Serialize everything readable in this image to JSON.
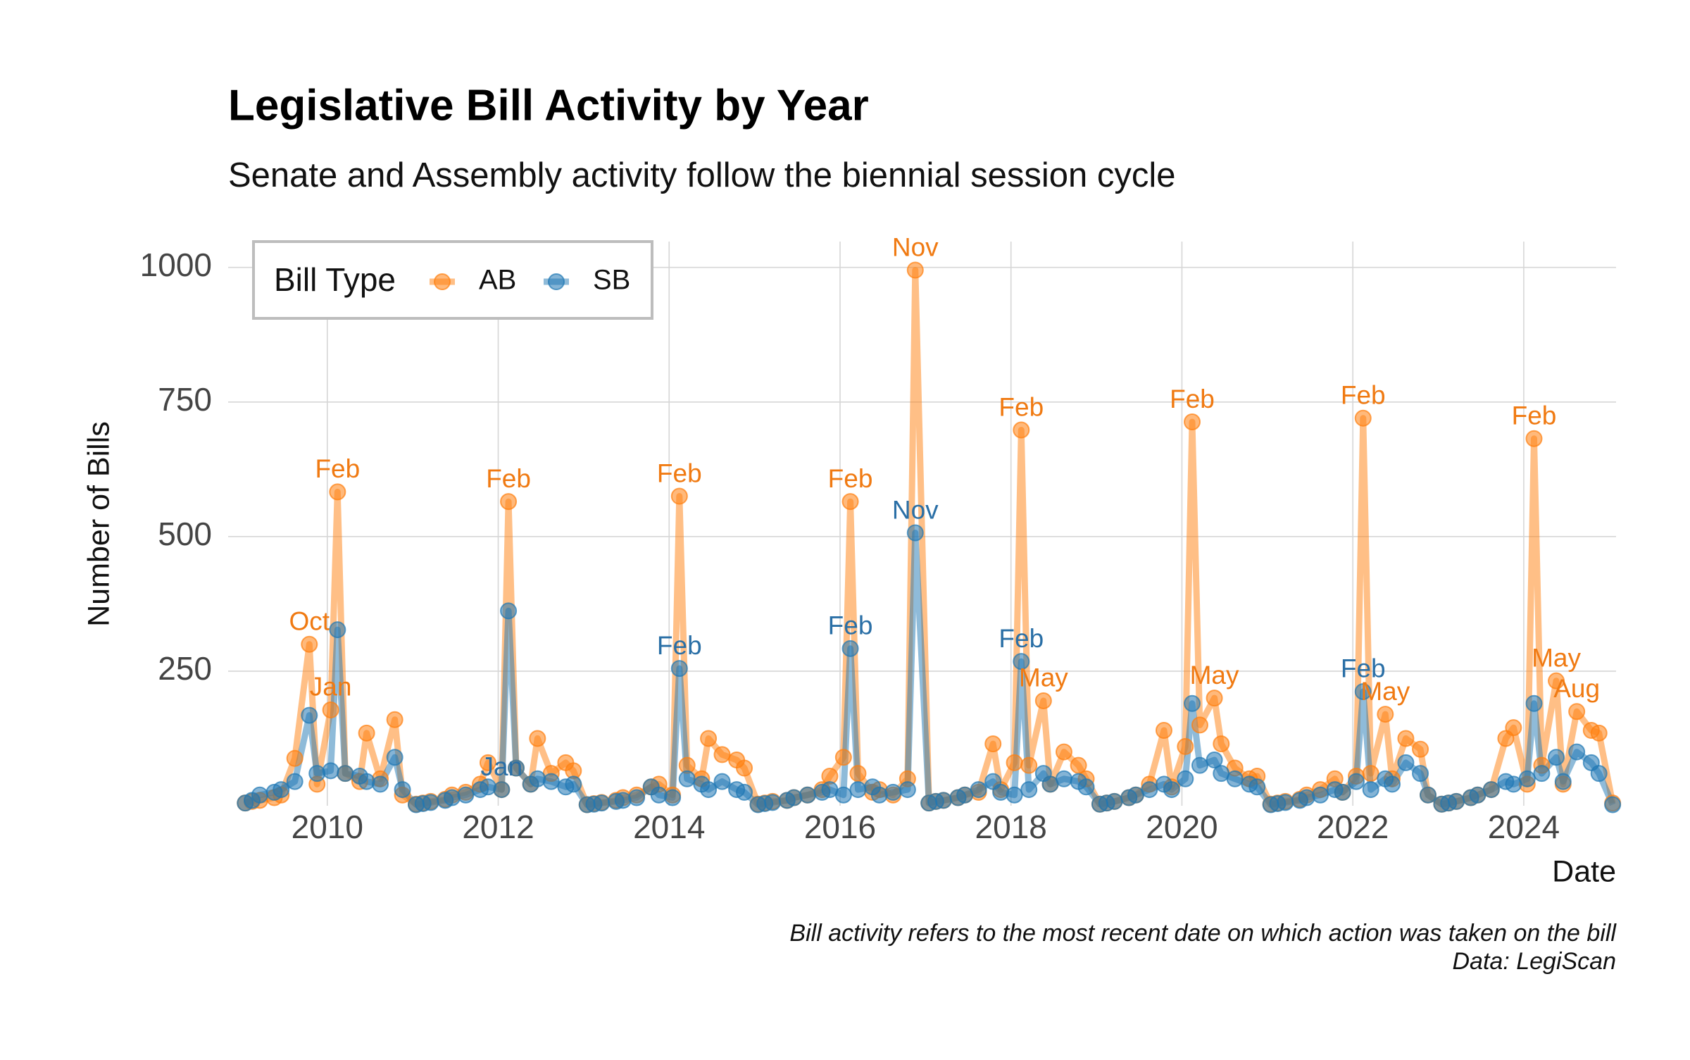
{
  "chart_data": {
    "type": "line",
    "title": "Legislative Bill Activity by Year",
    "subtitle": "Senate and Assembly activity follow the biennial session cycle",
    "x_label": "Date",
    "y_label": "Number of Bills",
    "caption": [
      "Bill activity refers to the most recent date on which action was taken on the bill",
      "Data: LegiScan"
    ],
    "legend_title": "Bill Type",
    "legend_position": "top-left",
    "grid": true,
    "xlim": [
      2008.84,
      2025.08
    ],
    "xticks": [
      2010,
      2012,
      2014,
      2016,
      2018,
      2020,
      2022,
      2024
    ],
    "ylim": [
      0,
      1048
    ],
    "yticks": [
      250,
      500,
      750,
      1000
    ],
    "x": [
      2009.04,
      2009.12,
      2009.21,
      2009.38,
      2009.46,
      2009.62,
      2009.79,
      2009.88,
      2010.04,
      2010.12,
      2010.21,
      2010.38,
      2010.46,
      2010.62,
      2010.79,
      2010.88,
      2011.04,
      2011.12,
      2011.21,
      2011.38,
      2011.46,
      2011.62,
      2011.79,
      2011.88,
      2012.04,
      2012.12,
      2012.21,
      2012.38,
      2012.46,
      2012.62,
      2012.79,
      2012.88,
      2013.04,
      2013.12,
      2013.21,
      2013.38,
      2013.46,
      2013.62,
      2013.79,
      2013.88,
      2014.04,
      2014.12,
      2014.21,
      2014.38,
      2014.46,
      2014.62,
      2014.79,
      2014.88,
      2015.04,
      2015.12,
      2015.21,
      2015.38,
      2015.46,
      2015.62,
      2015.79,
      2015.88,
      2016.04,
      2016.12,
      2016.21,
      2016.38,
      2016.46,
      2016.62,
      2016.79,
      2016.88,
      2017.04,
      2017.12,
      2017.21,
      2017.38,
      2017.46,
      2017.62,
      2017.79,
      2017.88,
      2018.04,
      2018.12,
      2018.21,
      2018.38,
      2018.46,
      2018.62,
      2018.79,
      2018.88,
      2019.04,
      2019.12,
      2019.21,
      2019.38,
      2019.46,
      2019.62,
      2019.79,
      2019.88,
      2020.04,
      2020.12,
      2020.21,
      2020.38,
      2020.46,
      2020.62,
      2020.79,
      2020.88,
      2021.04,
      2021.12,
      2021.21,
      2021.38,
      2021.46,
      2021.62,
      2021.79,
      2021.88,
      2022.04,
      2022.12,
      2022.21,
      2022.38,
      2022.46,
      2022.62,
      2022.79,
      2022.88,
      2023.04,
      2023.12,
      2023.21,
      2023.38,
      2023.46,
      2023.62,
      2023.79,
      2023.88,
      2024.04,
      2024.12,
      2024.21,
      2024.38,
      2024.46,
      2024.62,
      2024.79,
      2024.88,
      2025.04
    ],
    "series": [
      {
        "name": "AB",
        "color": "#ff7f0e",
        "label_color": "#f07a12",
        "values": [
          5,
          8,
          10,
          15,
          20,
          88,
          300,
          40,
          178,
          583,
          60,
          45,
          135,
          50,
          160,
          20,
          3,
          5,
          8,
          12,
          20,
          25,
          40,
          80,
          30,
          565,
          70,
          40,
          125,
          60,
          80,
          65,
          2,
          4,
          6,
          10,
          15,
          20,
          35,
          40,
          20,
          575,
          75,
          50,
          125,
          95,
          85,
          70,
          3,
          5,
          8,
          10,
          15,
          20,
          30,
          55,
          90,
          565,
          60,
          25,
          30,
          20,
          50,
          995,
          5,
          8,
          10,
          15,
          20,
          25,
          115,
          30,
          80,
          698,
          75,
          195,
          40,
          100,
          75,
          50,
          3,
          5,
          8,
          15,
          20,
          40,
          140,
          35,
          110,
          713,
          150,
          200,
          115,
          70,
          50,
          55,
          3,
          5,
          8,
          12,
          20,
          30,
          50,
          25,
          55,
          720,
          60,
          170,
          50,
          125,
          105,
          20,
          3,
          5,
          8,
          15,
          20,
          30,
          125,
          145,
          40,
          682,
          75,
          232,
          40,
          175,
          140,
          135,
          5
        ],
        "point_labels": [
          null,
          null,
          null,
          null,
          null,
          null,
          "Oct",
          null,
          "Jan",
          "Feb",
          null,
          null,
          null,
          null,
          null,
          null,
          null,
          null,
          null,
          null,
          null,
          null,
          null,
          null,
          null,
          "Feb",
          null,
          null,
          null,
          null,
          null,
          null,
          null,
          null,
          null,
          null,
          null,
          null,
          null,
          null,
          null,
          "Feb",
          null,
          null,
          null,
          null,
          null,
          null,
          null,
          null,
          null,
          null,
          null,
          null,
          null,
          null,
          null,
          "Feb",
          null,
          null,
          null,
          null,
          null,
          "Nov",
          null,
          null,
          null,
          null,
          null,
          null,
          null,
          null,
          null,
          "Feb",
          null,
          "May",
          null,
          null,
          null,
          null,
          null,
          null,
          null,
          null,
          null,
          null,
          null,
          null,
          null,
          "Feb",
          null,
          "May",
          null,
          null,
          null,
          null,
          null,
          null,
          null,
          null,
          null,
          null,
          null,
          null,
          null,
          "Feb",
          null,
          "May",
          null,
          null,
          null,
          null,
          null,
          null,
          null,
          null,
          null,
          null,
          null,
          null,
          null,
          "Feb",
          null,
          "May",
          null,
          "Aug",
          null,
          null,
          null
        ]
      },
      {
        "name": "SB",
        "color": "#1f77b4",
        "label_color": "#2a6fa6",
        "values": [
          5,
          10,
          20,
          25,
          30,
          45,
          168,
          60,
          65,
          327,
          60,
          55,
          45,
          40,
          90,
          30,
          2,
          4,
          6,
          10,
          15,
          20,
          30,
          35,
          30,
          362,
          70,
          40,
          50,
          45,
          35,
          40,
          2,
          3,
          5,
          8,
          10,
          15,
          35,
          20,
          15,
          255,
          50,
          40,
          30,
          45,
          30,
          25,
          2,
          4,
          6,
          10,
          15,
          20,
          25,
          30,
          20,
          292,
          30,
          35,
          20,
          25,
          30,
          507,
          5,
          8,
          10,
          15,
          20,
          30,
          45,
          25,
          20,
          268,
          30,
          60,
          40,
          50,
          45,
          35,
          3,
          5,
          8,
          15,
          20,
          30,
          40,
          30,
          50,
          190,
          75,
          85,
          60,
          50,
          40,
          35,
          2,
          4,
          6,
          10,
          15,
          20,
          30,
          25,
          45,
          212,
          30,
          50,
          40,
          80,
          60,
          20,
          3,
          5,
          8,
          15,
          20,
          30,
          45,
          40,
          50,
          190,
          60,
          90,
          45,
          100,
          80,
          60,
          2
        ],
        "point_labels": [
          null,
          null,
          null,
          null,
          null,
          null,
          null,
          null,
          null,
          null,
          null,
          null,
          null,
          null,
          null,
          null,
          null,
          null,
          null,
          null,
          null,
          null,
          null,
          null,
          "Jan",
          null,
          null,
          null,
          null,
          null,
          null,
          null,
          null,
          null,
          null,
          null,
          null,
          null,
          null,
          null,
          null,
          "Feb",
          null,
          null,
          null,
          null,
          null,
          null,
          null,
          null,
          null,
          null,
          null,
          null,
          null,
          null,
          null,
          "Feb",
          null,
          null,
          null,
          null,
          null,
          "Nov",
          null,
          null,
          null,
          null,
          null,
          null,
          null,
          null,
          null,
          "Feb",
          null,
          null,
          null,
          null,
          null,
          null,
          null,
          null,
          null,
          null,
          null,
          null,
          null,
          null,
          null,
          null,
          null,
          null,
          null,
          null,
          null,
          null,
          null,
          null,
          null,
          null,
          null,
          null,
          null,
          null,
          null,
          "Feb",
          null,
          null,
          null,
          null,
          null,
          null,
          null,
          null,
          null,
          null,
          null,
          null,
          null,
          null,
          null,
          null,
          null,
          null,
          null,
          null,
          null,
          null,
          null
        ]
      }
    ]
  }
}
